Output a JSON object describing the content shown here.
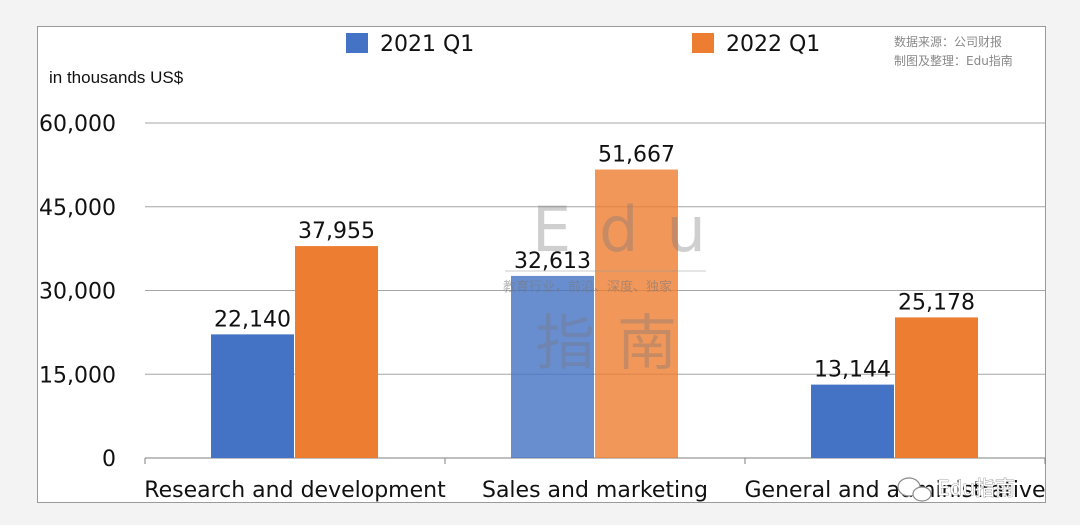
{
  "chart_data": {
    "type": "bar",
    "categories": [
      "Research and development",
      "Sales and marketing",
      "General and administrative"
    ],
    "series": [
      {
        "name": "2021 Q1",
        "color": "#4472c4",
        "values": [
          22140,
          32613,
          13144
        ],
        "labels": [
          "22,140",
          "32,613",
          "13,144"
        ]
      },
      {
        "name": "2022 Q1",
        "color": "#ed7d31",
        "values": [
          37955,
          51667,
          25178
        ],
        "labels": [
          "37,955",
          "51,667",
          "25,178"
        ]
      }
    ],
    "ylabel": "in thousands US$",
    "ylim": [
      0,
      60000
    ],
    "yticks": [
      0,
      15000,
      30000,
      45000,
      60000
    ],
    "ytick_labels": [
      "0",
      "15,000",
      "30,000",
      "45,000",
      "60,000"
    ],
    "grid": true,
    "legend_position": "top"
  },
  "source_note": [
    "数据来源：公司财报",
    "制图及整理：Edu指南"
  ],
  "watermark": {
    "logo_text": "Edu",
    "tagline": "教育行业，前沿、深度、独家",
    "logo_text_cn": "指南"
  },
  "brand_mark": {
    "icon": "wechat-icon",
    "text": "Edu指南"
  }
}
